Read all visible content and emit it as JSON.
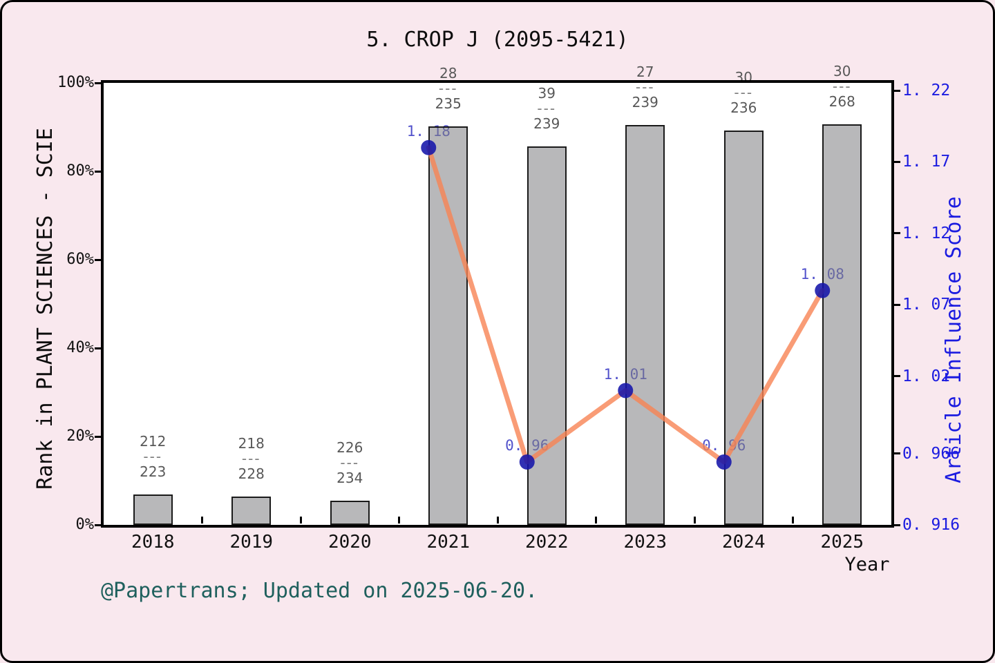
{
  "title": "5. CROP J (2095-5421)",
  "footer": "@Papertrans; Updated on 2025-06-20.",
  "colors": {
    "background": "#f9e8ee",
    "plot_background": "#ffffff",
    "frame": "#000000",
    "bar_fill": "#b9b9bb",
    "bar_edge": "#141414",
    "line": "#f78354",
    "marker": "#1414aa",
    "point_label": "#2626be",
    "right_axis_text": "#1b1be0",
    "fraction_label": "#585858",
    "footer_text": "#1f605d"
  },
  "chart_data": {
    "type": "bar+line combo",
    "title": "5. CROP J (2095-5421)",
    "xlabel": "Year",
    "categories": [
      "2018",
      "2019",
      "2020",
      "2021",
      "2022",
      "2023",
      "2024",
      "2025"
    ],
    "grid": false,
    "legend": "none",
    "bar_series": {
      "name": "Rank in PLANT SCIENCES - SCIE",
      "axis": "left",
      "values_percent": [
        6.9,
        6.4,
        5.5,
        90.2,
        85.6,
        90.5,
        89.2,
        90.6
      ],
      "fraction_divider": "---",
      "fraction_labels": [
        {
          "num": "212",
          "den": "223"
        },
        {
          "num": "218",
          "den": "228"
        },
        {
          "num": "226",
          "den": "234"
        },
        {
          "num": "28",
          "den": "235"
        },
        {
          "num": "39",
          "den": "239"
        },
        {
          "num": "27",
          "den": "239"
        },
        {
          "num": "30",
          "den": "236"
        },
        {
          "num": "30",
          "den": "268"
        }
      ],
      "ylim": [
        0,
        100
      ],
      "yticks": [
        0,
        20,
        40,
        60,
        80,
        100
      ],
      "ytick_labels": [
        "0%",
        "20%",
        "40%",
        "60%",
        "80%",
        "100%"
      ]
    },
    "line_series": {
      "name": "Article Influence Score",
      "axis": "right",
      "x": [
        "2021",
        "2022",
        "2023",
        "2024",
        "2025"
      ],
      "values": [
        1.18,
        0.96,
        1.01,
        0.96,
        1.08
      ],
      "point_labels": [
        "1. 18",
        "0. 96",
        "1. 01",
        "0. 96",
        "1. 08"
      ],
      "ylim": [
        0.916,
        1.22
      ],
      "yticks": [
        1.22,
        1.17,
        1.12,
        1.07,
        1.02,
        0.966,
        0.916
      ],
      "ytick_labels": [
        "1. 22",
        "1. 17",
        "1. 12",
        "1. 07",
        "1. 02",
        "0. 966",
        "0. 916"
      ]
    }
  }
}
